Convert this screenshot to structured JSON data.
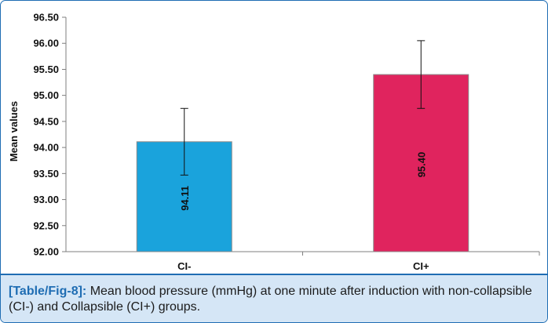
{
  "chart_data": {
    "type": "bar",
    "categories": [
      "CI-",
      "CI+"
    ],
    "values": [
      94.11,
      95.4
    ],
    "data_labels": [
      "94.11",
      "95.40"
    ],
    "error_bars": [
      {
        "low": 93.47,
        "high": 94.75
      },
      {
        "low": 94.75,
        "high": 96.05
      }
    ],
    "bar_colors": [
      "#1aa3dc",
      "#e0245e"
    ],
    "ylabel": "Mean values",
    "xlabel": "",
    "ylim": [
      92.0,
      96.5
    ],
    "yticks": [
      92.0,
      92.5,
      93.0,
      93.5,
      94.0,
      94.5,
      95.0,
      95.5,
      96.0,
      96.5
    ],
    "ytick_labels": [
      "92.00",
      "92.50",
      "93.00",
      "93.50",
      "94.00",
      "94.50",
      "95.00",
      "95.50",
      "96.00",
      "96.50"
    ],
    "grid": false
  },
  "caption": {
    "tag": "[Table/Fig-8]:",
    "text": " Mean blood pressure (mmHg) at one minute after induction with non-collapsible (CI-) and Collapsible (CI+) groups."
  },
  "colors": {
    "frame": "#1f6db3",
    "caption_bg": "#d5e6f6"
  }
}
